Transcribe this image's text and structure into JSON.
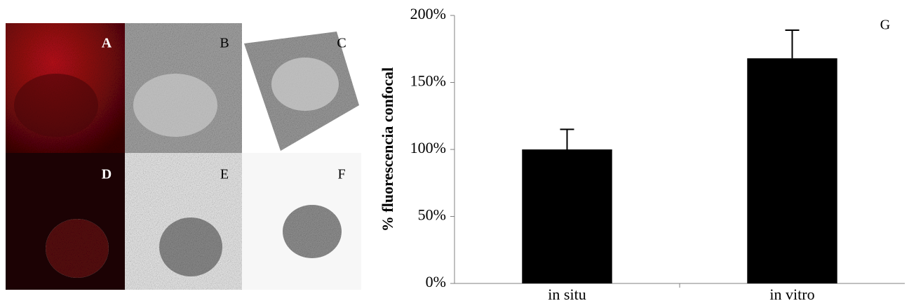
{
  "panels": [
    "A",
    "B",
    "C",
    "D",
    "E",
    "F"
  ],
  "chart_data": {
    "type": "bar",
    "annotation": "G",
    "y_label": "% fluorescencia confocal",
    "categories": [
      "in situ",
      "in vitro"
    ],
    "values": [
      100,
      168
    ],
    "errors": [
      15,
      21
    ],
    "color": "#000000",
    "ylim": [
      0,
      200
    ],
    "yticks": [
      {
        "value": 0,
        "label": "0%"
      },
      {
        "value": 50,
        "label": "50%"
      },
      {
        "value": 100,
        "label": "100%"
      },
      {
        "value": 150,
        "label": "150%"
      },
      {
        "value": 200,
        "label": "200%"
      }
    ]
  }
}
